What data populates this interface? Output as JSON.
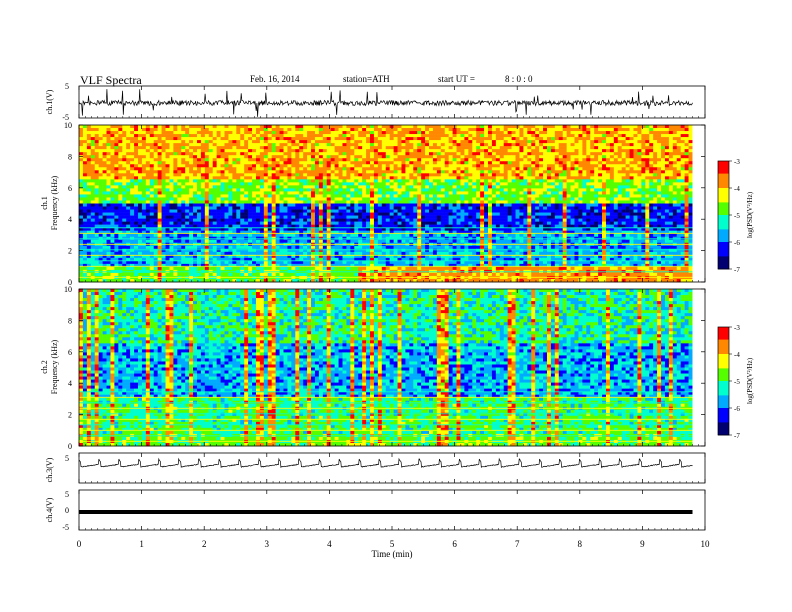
{
  "header": {
    "title": "VLF  Spectra",
    "date": "Feb. 16, 2014",
    "station": "station=ATH",
    "start_label": "start  UT  =",
    "start_time": "8 : 0 : 0"
  },
  "colors": {
    "colormap": [
      "#000070",
      "#0000ff",
      "#00aaff",
      "#00ffcc",
      "#55ff00",
      "#ffff00",
      "#ff8800",
      "#ff0000",
      "#ffffff"
    ],
    "trace": "#000000"
  },
  "chart_data": [
    {
      "type": "line",
      "id": "ch1-waveform",
      "ylabel": "ch.1(V)",
      "ylim": [
        -5,
        5
      ],
      "yticks": [
        "5",
        "-5"
      ],
      "description_level": "noisy trace centred near 0 V with spikes"
    },
    {
      "type": "heatmap",
      "id": "ch1-spectrogram",
      "ylabel": "ch.1\nFrequency (kHz)",
      "ylabel_line1": "ch.1",
      "ylabel_line2": "Frequency  (kHz)",
      "ylim": [
        0,
        10
      ],
      "yticks": [
        "0",
        "2",
        "4",
        "6",
        "8",
        "10"
      ],
      "colorbar": {
        "label": "log(PSD(V²/Hz)",
        "range": [
          -7,
          -3
        ],
        "ticks": [
          "-3",
          "-4",
          "-5",
          "-6",
          "-7"
        ]
      }
    },
    {
      "type": "heatmap",
      "id": "ch2-spectrogram",
      "ylabel_line1": "ch.2",
      "ylabel_line2": "Frequency  (kHz)",
      "ylim": [
        0,
        10
      ],
      "yticks": [
        "0",
        "2",
        "4",
        "6",
        "8",
        "10"
      ],
      "colorbar": {
        "label": "log(PSD(V²/Hz)",
        "range": [
          -7,
          -3
        ],
        "ticks": [
          "-3",
          "-4",
          "-5",
          "-6",
          "-7"
        ]
      }
    },
    {
      "type": "line",
      "id": "ch3-waveform",
      "ylabel": "ch.3(V)",
      "ylim": [
        -5,
        5
      ],
      "yticks": [
        "5"
      ],
      "period_min": 0.32
    },
    {
      "type": "line",
      "id": "ch4-waveform",
      "ylabel": "ch.4(V)",
      "ylim": [
        -5,
        5
      ],
      "yticks": [
        "5",
        "0",
        "-5"
      ],
      "level": -0.5
    }
  ],
  "xaxis": {
    "label": "Time  (min)",
    "range": [
      0,
      10
    ],
    "ticks": [
      "0",
      "1",
      "2",
      "3",
      "4",
      "5",
      "6",
      "7",
      "8",
      "9",
      "10"
    ],
    "data_end": 9.8
  }
}
